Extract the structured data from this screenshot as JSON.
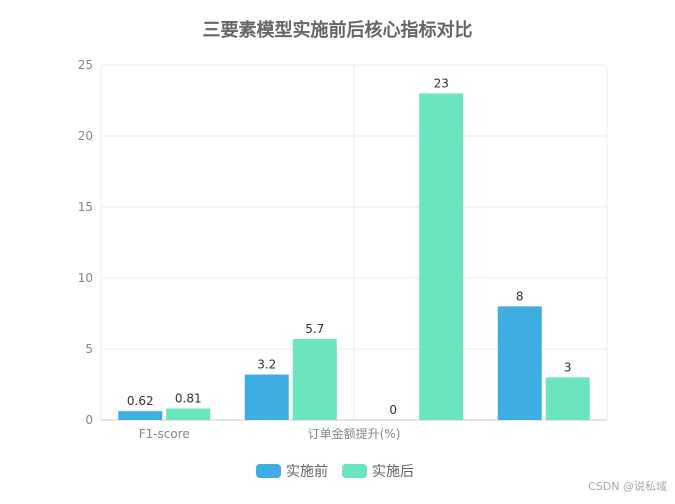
{
  "chart_data": {
    "type": "bar",
    "title": "三要素模型实施前后核心指标对比",
    "categories": [
      "F1-score",
      "",
      "订单金额提升(%)",
      ""
    ],
    "series": [
      {
        "name": "实施前",
        "values": [
          0.62,
          3.2,
          0,
          8
        ],
        "color": "#3eaee2"
      },
      {
        "name": "实施后",
        "values": [
          0.81,
          5.7,
          23,
          3
        ],
        "color": "#6ae5c0"
      }
    ],
    "xlabel": "",
    "ylabel": "",
    "ylim": [
      0,
      25
    ],
    "yticks": [
      0,
      5,
      10,
      15,
      20,
      25
    ],
    "grid": true,
    "legend_position": "bottom-center"
  },
  "watermark": "CSDN @说私域"
}
